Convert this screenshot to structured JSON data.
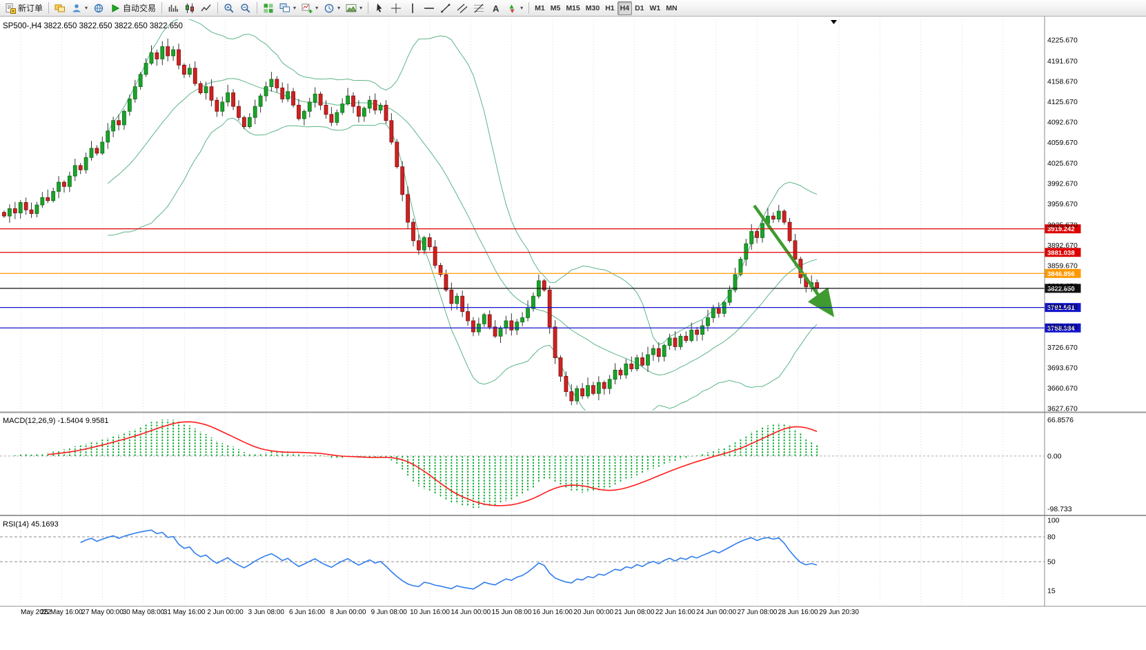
{
  "app": {
    "badge_count": "1"
  },
  "toolbar": {
    "groups": [
      {
        "name": "orders",
        "items": [
          {
            "name": "new-order-button",
            "icon": "doc",
            "label": "新订单"
          }
        ]
      },
      {
        "name": "panels",
        "items": [
          {
            "name": "market-watch-icon",
            "icon": "stack"
          },
          {
            "name": "profiles-icon",
            "icon": "profile",
            "dropdown": true
          },
          {
            "name": "community-icon",
            "icon": "globe"
          },
          {
            "name": "auto-trading-button",
            "icon": "play",
            "label": "自动交易"
          }
        ]
      },
      {
        "name": "chart-types",
        "items": [
          {
            "name": "bar-chart-icon",
            "icon": "bars"
          },
          {
            "name": "candlestick-chart-icon",
            "icon": "candle"
          },
          {
            "name": "line-chart-icon",
            "icon": "linechart"
          }
        ]
      },
      {
        "name": "zoom",
        "items": [
          {
            "name": "zoom-in-icon",
            "icon": "zoomin"
          },
          {
            "name": "zoom-out-icon",
            "icon": "zoomout"
          }
        ]
      },
      {
        "name": "windows",
        "items": [
          {
            "name": "tile-windows-icon",
            "icon": "tile"
          },
          {
            "name": "new-chart-icon",
            "icon": "cascade",
            "dropdown": true
          },
          {
            "name": "indicators-icon",
            "icon": "pluschart",
            "dropdown": true
          },
          {
            "name": "periods-icon",
            "icon": "clock",
            "dropdown": true
          },
          {
            "name": "templates-icon",
            "icon": "template",
            "dropdown": true
          }
        ]
      },
      {
        "name": "drawing-tools",
        "items": [
          {
            "name": "cursor-icon",
            "icon": "cursor"
          },
          {
            "name": "crosshair-icon",
            "icon": "crosshair"
          },
          {
            "name": "vertical-line-icon",
            "icon": "vline"
          },
          {
            "name": "horizontal-line-icon",
            "icon": "hline"
          },
          {
            "name": "trendline-icon",
            "icon": "trendline"
          },
          {
            "name": "channel-icon",
            "icon": "channel"
          },
          {
            "name": "fibonacci-icon",
            "icon": "fibo"
          },
          {
            "name": "text-icon",
            "icon": "textA"
          },
          {
            "name": "arrows-icon",
            "icon": "arrows",
            "dropdown": true
          }
        ]
      },
      {
        "name": "timeframes",
        "items": [
          {
            "name": "tf-m1",
            "label": "M1"
          },
          {
            "name": "tf-m5",
            "label": "M5"
          },
          {
            "name": "tf-m15",
            "label": "M15"
          },
          {
            "name": "tf-m30",
            "label": "M30"
          },
          {
            "name": "tf-h1",
            "label": "H1"
          },
          {
            "name": "tf-h4",
            "label": "H4",
            "active": true
          },
          {
            "name": "tf-d1",
            "label": "D1"
          },
          {
            "name": "tf-w1",
            "label": "W1"
          },
          {
            "name": "tf-mn",
            "label": "MN"
          }
        ]
      }
    ]
  },
  "colors": {
    "up": "#1ba32b",
    "down": "#cf2222",
    "wick": "#333333",
    "bollinger": "#5cb487",
    "macd_hist": "#00a82a",
    "macd_signal": "#ff1a1a",
    "rsi": "#2f7ded",
    "grid": "#d9d9d9",
    "axis_text": "#000000",
    "arrow": "#3f9b2f"
  },
  "chart_data": [
    {
      "type": "candlestick",
      "title": "SP500-,H4",
      "header_info": "SP500-,H4  3822.650 3822.650 3822.650 3822.650",
      "timeframe": "H4",
      "ylim": [
        3624.3,
        4259.3
      ],
      "closes": [
        3940,
        3952,
        3945,
        3962,
        3950,
        3944,
        3958,
        3970,
        3965,
        3980,
        3995,
        3988,
        4005,
        4022,
        4015,
        4035,
        4050,
        4042,
        4060,
        4078,
        4095,
        4088,
        4110,
        4130,
        4150,
        4170,
        4188,
        4205,
        4195,
        4215,
        4200,
        4210,
        4185,
        4170,
        4180,
        4155,
        4140,
        4150,
        4128,
        4110,
        4125,
        4140,
        4118,
        4100,
        4085,
        4100,
        4118,
        4135,
        4150,
        4162,
        4148,
        4130,
        4142,
        4120,
        4098,
        4110,
        4125,
        4138,
        4120,
        4105,
        4092,
        4108,
        4122,
        4135,
        4118,
        4102,
        4115,
        4128,
        4112,
        4120,
        4095,
        4060,
        4020,
        3975,
        3930,
        3900,
        3885,
        3905,
        3890,
        3860,
        3845,
        3820,
        3798,
        3810,
        3785,
        3770,
        3752,
        3765,
        3780,
        3760,
        3745,
        3758,
        3770,
        3755,
        3768,
        3775,
        3790,
        3810,
        3835,
        3820,
        3760,
        3710,
        3680,
        3655,
        3640,
        3660,
        3648,
        3665,
        3652,
        3670,
        3660,
        3675,
        3690,
        3682,
        3700,
        3692,
        3710,
        3698,
        3715,
        3725,
        3712,
        3730,
        3742,
        3728,
        3745,
        3738,
        3755,
        3748,
        3762,
        3775,
        3790,
        3782,
        3800,
        3820,
        3845,
        3870,
        3895,
        3915,
        3905,
        3928,
        3940,
        3935,
        3948,
        3930,
        3900,
        3870,
        3840,
        3825,
        3832,
        3822.65
      ],
      "last_close": 3822.65,
      "bollinger": {
        "period": 20,
        "deviation": 2
      },
      "y_ticks": [
        "4225.670",
        "4191.670",
        "4158.670",
        "4125.670",
        "4092.670",
        "4059.670",
        "4025.670",
        "3992.670",
        "3959.670",
        "3925.670",
        "3892.670",
        "3859.670",
        "3826.670",
        "3792.670",
        "3759.670",
        "3726.670",
        "3693.670",
        "3660.670",
        "3627.670"
      ],
      "hlines": [
        {
          "value": 3919.242,
          "label": "3919.242",
          "color": "#dd0000"
        },
        {
          "value": 3881.038,
          "label": "3881.038",
          "color": "#dd0000"
        },
        {
          "value": 3846.856,
          "label": "3846.856",
          "color": "#ff9800"
        },
        {
          "value": 3822.65,
          "label": "3822.650",
          "color": "#111111"
        },
        {
          "value": 3791.561,
          "label": "3791.561",
          "color": "#1414cc"
        },
        {
          "value": 3758.384,
          "label": "3758.384",
          "color": "#1414cc"
        }
      ],
      "arrow": {
        "from": {
          "index": 137.5,
          "price": 3957
        },
        "to": {
          "index": 151.5,
          "price": 3784
        }
      },
      "x_labels": [
        "May 2022",
        "25 May 16:00",
        "27 May 00:00",
        "30 May 08:00",
        "31 May 16:00",
        "2 Jun 00:00",
        "3 Jun 08:00",
        "6 Jun 16:00",
        "8 Jun 00:00",
        "9 Jun 08:00",
        "10 Jun 16:00",
        "14 Jun 00:00",
        "15 Jun 08:00",
        "16 Jun 16:00",
        "20 Jun 00:00",
        "21 Jun 08:00",
        "22 Jun 16:00",
        "24 Jun 00:00",
        "27 Jun 08:00",
        "28 Jun 16:00",
        "29 Jun 20:30"
      ]
    },
    {
      "type": "macd",
      "label": "MACD(12,26,9)",
      "current_values": "-1.5404 9.9581",
      "fast": 12,
      "slow": 26,
      "signal": 9,
      "y_ticks": [
        "66.8576",
        "0.00",
        "-98.733"
      ]
    },
    {
      "type": "rsi",
      "label": "RSI(14)",
      "current_value": "45.1693",
      "period": 14,
      "levels": [
        80,
        50
      ],
      "y_ticks": [
        100,
        80,
        50,
        15
      ]
    }
  ]
}
